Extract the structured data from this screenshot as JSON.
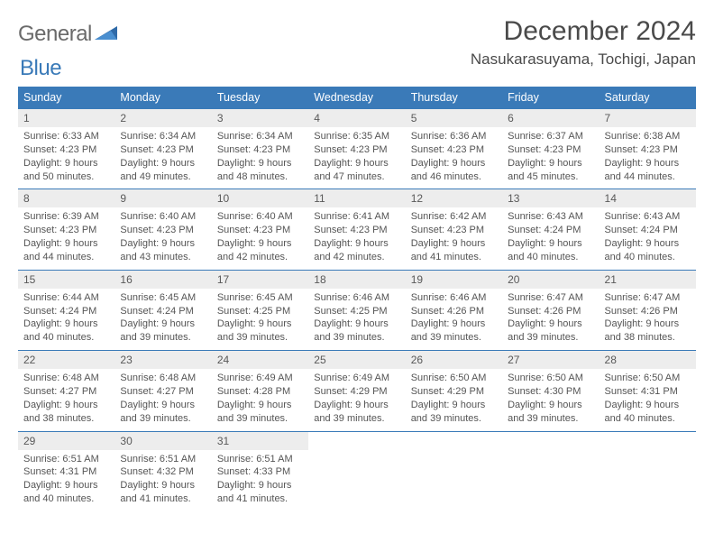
{
  "logo": {
    "part1": "General",
    "part2": "Blue"
  },
  "title": "December 2024",
  "location": "Nasukarasuyama, Tochigi, Japan",
  "colors": {
    "header_bg": "#3a7ab8",
    "header_fg": "#ffffff",
    "daynum_bg": "#ededed",
    "border": "#3a7ab8",
    "text": "#4a4a4a",
    "logo_gray": "#6a6a6a",
    "logo_blue": "#3a7ab8"
  },
  "weekdays": [
    "Sunday",
    "Monday",
    "Tuesday",
    "Wednesday",
    "Thursday",
    "Friday",
    "Saturday"
  ],
  "weeks": [
    {
      "nums": [
        "1",
        "2",
        "3",
        "4",
        "5",
        "6",
        "7"
      ],
      "cells": [
        {
          "sunrise": "Sunrise: 6:33 AM",
          "sunset": "Sunset: 4:23 PM",
          "day1": "Daylight: 9 hours",
          "day2": "and 50 minutes."
        },
        {
          "sunrise": "Sunrise: 6:34 AM",
          "sunset": "Sunset: 4:23 PM",
          "day1": "Daylight: 9 hours",
          "day2": "and 49 minutes."
        },
        {
          "sunrise": "Sunrise: 6:34 AM",
          "sunset": "Sunset: 4:23 PM",
          "day1": "Daylight: 9 hours",
          "day2": "and 48 minutes."
        },
        {
          "sunrise": "Sunrise: 6:35 AM",
          "sunset": "Sunset: 4:23 PM",
          "day1": "Daylight: 9 hours",
          "day2": "and 47 minutes."
        },
        {
          "sunrise": "Sunrise: 6:36 AM",
          "sunset": "Sunset: 4:23 PM",
          "day1": "Daylight: 9 hours",
          "day2": "and 46 minutes."
        },
        {
          "sunrise": "Sunrise: 6:37 AM",
          "sunset": "Sunset: 4:23 PM",
          "day1": "Daylight: 9 hours",
          "day2": "and 45 minutes."
        },
        {
          "sunrise": "Sunrise: 6:38 AM",
          "sunset": "Sunset: 4:23 PM",
          "day1": "Daylight: 9 hours",
          "day2": "and 44 minutes."
        }
      ]
    },
    {
      "nums": [
        "8",
        "9",
        "10",
        "11",
        "12",
        "13",
        "14"
      ],
      "cells": [
        {
          "sunrise": "Sunrise: 6:39 AM",
          "sunset": "Sunset: 4:23 PM",
          "day1": "Daylight: 9 hours",
          "day2": "and 44 minutes."
        },
        {
          "sunrise": "Sunrise: 6:40 AM",
          "sunset": "Sunset: 4:23 PM",
          "day1": "Daylight: 9 hours",
          "day2": "and 43 minutes."
        },
        {
          "sunrise": "Sunrise: 6:40 AM",
          "sunset": "Sunset: 4:23 PM",
          "day1": "Daylight: 9 hours",
          "day2": "and 42 minutes."
        },
        {
          "sunrise": "Sunrise: 6:41 AM",
          "sunset": "Sunset: 4:23 PM",
          "day1": "Daylight: 9 hours",
          "day2": "and 42 minutes."
        },
        {
          "sunrise": "Sunrise: 6:42 AM",
          "sunset": "Sunset: 4:23 PM",
          "day1": "Daylight: 9 hours",
          "day2": "and 41 minutes."
        },
        {
          "sunrise": "Sunrise: 6:43 AM",
          "sunset": "Sunset: 4:24 PM",
          "day1": "Daylight: 9 hours",
          "day2": "and 40 minutes."
        },
        {
          "sunrise": "Sunrise: 6:43 AM",
          "sunset": "Sunset: 4:24 PM",
          "day1": "Daylight: 9 hours",
          "day2": "and 40 minutes."
        }
      ]
    },
    {
      "nums": [
        "15",
        "16",
        "17",
        "18",
        "19",
        "20",
        "21"
      ],
      "cells": [
        {
          "sunrise": "Sunrise: 6:44 AM",
          "sunset": "Sunset: 4:24 PM",
          "day1": "Daylight: 9 hours",
          "day2": "and 40 minutes."
        },
        {
          "sunrise": "Sunrise: 6:45 AM",
          "sunset": "Sunset: 4:24 PM",
          "day1": "Daylight: 9 hours",
          "day2": "and 39 minutes."
        },
        {
          "sunrise": "Sunrise: 6:45 AM",
          "sunset": "Sunset: 4:25 PM",
          "day1": "Daylight: 9 hours",
          "day2": "and 39 minutes."
        },
        {
          "sunrise": "Sunrise: 6:46 AM",
          "sunset": "Sunset: 4:25 PM",
          "day1": "Daylight: 9 hours",
          "day2": "and 39 minutes."
        },
        {
          "sunrise": "Sunrise: 6:46 AM",
          "sunset": "Sunset: 4:26 PM",
          "day1": "Daylight: 9 hours",
          "day2": "and 39 minutes."
        },
        {
          "sunrise": "Sunrise: 6:47 AM",
          "sunset": "Sunset: 4:26 PM",
          "day1": "Daylight: 9 hours",
          "day2": "and 39 minutes."
        },
        {
          "sunrise": "Sunrise: 6:47 AM",
          "sunset": "Sunset: 4:26 PM",
          "day1": "Daylight: 9 hours",
          "day2": "and 38 minutes."
        }
      ]
    },
    {
      "nums": [
        "22",
        "23",
        "24",
        "25",
        "26",
        "27",
        "28"
      ],
      "cells": [
        {
          "sunrise": "Sunrise: 6:48 AM",
          "sunset": "Sunset: 4:27 PM",
          "day1": "Daylight: 9 hours",
          "day2": "and 38 minutes."
        },
        {
          "sunrise": "Sunrise: 6:48 AM",
          "sunset": "Sunset: 4:27 PM",
          "day1": "Daylight: 9 hours",
          "day2": "and 39 minutes."
        },
        {
          "sunrise": "Sunrise: 6:49 AM",
          "sunset": "Sunset: 4:28 PM",
          "day1": "Daylight: 9 hours",
          "day2": "and 39 minutes."
        },
        {
          "sunrise": "Sunrise: 6:49 AM",
          "sunset": "Sunset: 4:29 PM",
          "day1": "Daylight: 9 hours",
          "day2": "and 39 minutes."
        },
        {
          "sunrise": "Sunrise: 6:50 AM",
          "sunset": "Sunset: 4:29 PM",
          "day1": "Daylight: 9 hours",
          "day2": "and 39 minutes."
        },
        {
          "sunrise": "Sunrise: 6:50 AM",
          "sunset": "Sunset: 4:30 PM",
          "day1": "Daylight: 9 hours",
          "day2": "and 39 minutes."
        },
        {
          "sunrise": "Sunrise: 6:50 AM",
          "sunset": "Sunset: 4:31 PM",
          "day1": "Daylight: 9 hours",
          "day2": "and 40 minutes."
        }
      ]
    },
    {
      "nums": [
        "29",
        "30",
        "31",
        "",
        "",
        "",
        ""
      ],
      "cells": [
        {
          "sunrise": "Sunrise: 6:51 AM",
          "sunset": "Sunset: 4:31 PM",
          "day1": "Daylight: 9 hours",
          "day2": "and 40 minutes."
        },
        {
          "sunrise": "Sunrise: 6:51 AM",
          "sunset": "Sunset: 4:32 PM",
          "day1": "Daylight: 9 hours",
          "day2": "and 41 minutes."
        },
        {
          "sunrise": "Sunrise: 6:51 AM",
          "sunset": "Sunset: 4:33 PM",
          "day1": "Daylight: 9 hours",
          "day2": "and 41 minutes."
        },
        null,
        null,
        null,
        null
      ]
    }
  ]
}
